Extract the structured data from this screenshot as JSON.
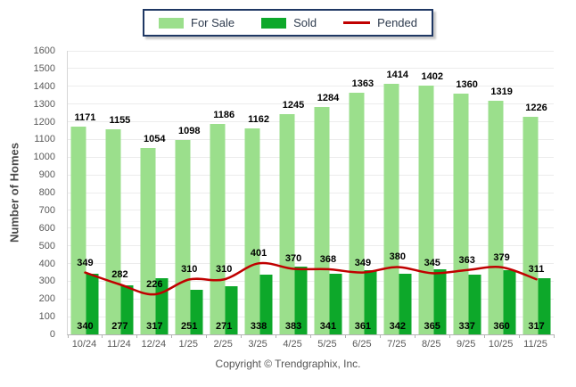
{
  "legend": {
    "items": [
      {
        "label": "For Sale",
        "swatch": "bar",
        "color": "#9bdf8c"
      },
      {
        "label": "Sold",
        "swatch": "bar",
        "color": "#0da82a"
      },
      {
        "label": "Pended",
        "swatch": "line",
        "color": "#c00000"
      }
    ],
    "border_color": "#1f3864"
  },
  "footer": {
    "copyright": "Copyright © Trendgraphix, Inc."
  },
  "chart_data": {
    "type": "bar",
    "title": "",
    "xlabel": "",
    "ylabel": "Number of Homes",
    "ylim": [
      0,
      1600
    ],
    "ytick_step": 100,
    "grid": true,
    "legend_position": "top",
    "categories": [
      "10/24",
      "11/24",
      "12/24",
      "1/25",
      "2/25",
      "3/25",
      "4/25",
      "5/25",
      "6/25",
      "7/25",
      "8/25",
      "9/25",
      "10/25",
      "11/25"
    ],
    "series": [
      {
        "name": "For Sale",
        "type": "bar",
        "color": "#9bdf8c",
        "values": [
          1171,
          1155,
          1054,
          1098,
          1186,
          1162,
          1245,
          1284,
          1363,
          1414,
          1402,
          1360,
          1319,
          1226
        ]
      },
      {
        "name": "Sold",
        "type": "bar",
        "color": "#0da82a",
        "values": [
          340,
          277,
          317,
          251,
          271,
          338,
          383,
          341,
          361,
          342,
          365,
          337,
          360,
          317
        ]
      },
      {
        "name": "Pended",
        "type": "line",
        "color": "#c00000",
        "values": [
          349,
          282,
          226,
          310,
          310,
          401,
          370,
          368,
          349,
          380,
          345,
          363,
          379,
          311
        ]
      }
    ],
    "grid_color": "#ececec",
    "tick_text_color": "#595959",
    "data_label_color": "#000000"
  }
}
